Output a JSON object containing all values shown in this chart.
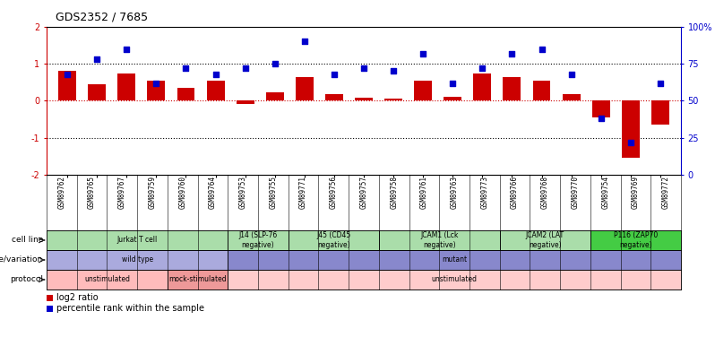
{
  "title": "GDS2352 / 7685",
  "samples": [
    "GSM89762",
    "GSM89765",
    "GSM89767",
    "GSM89759",
    "GSM89760",
    "GSM89764",
    "GSM89753",
    "GSM89755",
    "GSM89771",
    "GSM89756",
    "GSM89757",
    "GSM89758",
    "GSM89761",
    "GSM89763",
    "GSM89773",
    "GSM89766",
    "GSM89768",
    "GSM89770",
    "GSM89754",
    "GSM89769",
    "GSM89772"
  ],
  "log2_ratio": [
    0.82,
    0.45,
    0.75,
    0.55,
    0.35,
    0.55,
    -0.08,
    0.22,
    0.65,
    0.18,
    0.08,
    0.05,
    0.55,
    0.1,
    0.75,
    0.65,
    0.55,
    0.18,
    -0.45,
    -1.55,
    -0.65
  ],
  "percentile": [
    68,
    78,
    85,
    62,
    72,
    68,
    72,
    75,
    90,
    68,
    72,
    70,
    82,
    62,
    72,
    82,
    85,
    68,
    38,
    22,
    62
  ],
  "bar_color": "#cc0000",
  "dot_color": "#0000cc",
  "ylim_left": [
    -2,
    2
  ],
  "ylim_right": [
    0,
    100
  ],
  "yticks_left": [
    -2,
    -1,
    0,
    1,
    2
  ],
  "yticks_right": [
    0,
    25,
    50,
    75,
    100
  ],
  "ytick_labels_right": [
    "0",
    "25",
    "50",
    "75",
    "100%"
  ],
  "cell_line_groups": [
    {
      "text": "Jurkat T cell",
      "start": 0,
      "end": 5,
      "color": "#aaddaa"
    },
    {
      "text": "J14 (SLP-76\nnegative)",
      "start": 6,
      "end": 7,
      "color": "#aaddaa"
    },
    {
      "text": "J45 (CD45\nnegative)",
      "start": 8,
      "end": 10,
      "color": "#aaddaa"
    },
    {
      "text": "JCAM1 (Lck\nnegative)",
      "start": 11,
      "end": 14,
      "color": "#aaddaa"
    },
    {
      "text": "JCAM2 (LAT\nnegative)",
      "start": 15,
      "end": 17,
      "color": "#aaddaa"
    },
    {
      "text": "P116 (ZAP70\nnegative)",
      "start": 18,
      "end": 20,
      "color": "#44cc44"
    }
  ],
  "genotype_groups": [
    {
      "text": "wild type",
      "start": 0,
      "end": 5,
      "color": "#aaaadd"
    },
    {
      "text": "mutant",
      "start": 6,
      "end": 20,
      "color": "#8888cc"
    }
  ],
  "protocol_groups": [
    {
      "text": "unstimulated",
      "start": 0,
      "end": 3,
      "color": "#ffbbbb"
    },
    {
      "text": "mock-stimulated",
      "start": 4,
      "end": 5,
      "color": "#ee9999"
    },
    {
      "text": "unstimulated",
      "start": 6,
      "end": 20,
      "color": "#ffcccc"
    }
  ],
  "row_labels": [
    "cell line",
    "genotype/variation",
    "protocol"
  ],
  "legend_items": [
    {
      "color": "#cc0000",
      "label": "log2 ratio"
    },
    {
      "color": "#0000cc",
      "label": "percentile rank within the sample"
    }
  ]
}
